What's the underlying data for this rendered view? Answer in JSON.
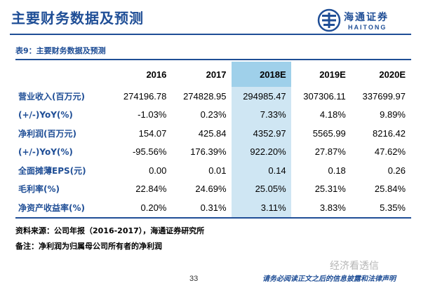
{
  "header": {
    "title": "主要财务数据及预测",
    "logo_cn": "海通证券",
    "logo_en": "HAITONG"
  },
  "table": {
    "caption": "表9：主要财务数据及预测",
    "highlight_color": "#cfe6f3",
    "columns": [
      "2016",
      "2017",
      "2018E",
      "2019E",
      "2020E"
    ],
    "rows": [
      {
        "label": "营业收入(百万元)",
        "values": [
          "274196.78",
          "274828.95",
          "294985.47",
          "307306.11",
          "337699.97"
        ]
      },
      {
        "label": "(+/-)YoY(%)",
        "values": [
          "-1.03%",
          "0.23%",
          "7.33%",
          "4.18%",
          "9.89%"
        ]
      },
      {
        "label": "净利润(百万元)",
        "values": [
          "154.07",
          "425.84",
          "4352.97",
          "5565.99",
          "8216.42"
        ]
      },
      {
        "label": "(+/-)YoY(%)",
        "values": [
          "-95.56%",
          "176.39%",
          "922.20%",
          "27.87%",
          "47.62%"
        ]
      },
      {
        "label": "全面摊薄EPS(元)",
        "values": [
          "0.00",
          "0.01",
          "0.14",
          "0.18",
          "0.26"
        ]
      },
      {
        "label": "毛利率(%)",
        "values": [
          "22.84%",
          "24.69%",
          "25.05%",
          "25.31%",
          "25.84%"
        ]
      },
      {
        "label": "净资产收益率(%)",
        "values": [
          "0.20%",
          "0.31%",
          "3.11%",
          "3.83%",
          "5.35%"
        ]
      }
    ]
  },
  "notes": {
    "source": "资料来源：公司年报（2016-2017），海通证券研究所",
    "remark_label": "备注：",
    "remark_text": "净利润为归属母公司所有者的净利润"
  },
  "footer": {
    "page": "33",
    "disclaimer": "请务必阅读正文之后的信息披露和法律声明",
    "watermark": "经济看透信"
  },
  "colors": {
    "brand": "#1f4e96",
    "highlight_header": "#9fd0ea"
  }
}
